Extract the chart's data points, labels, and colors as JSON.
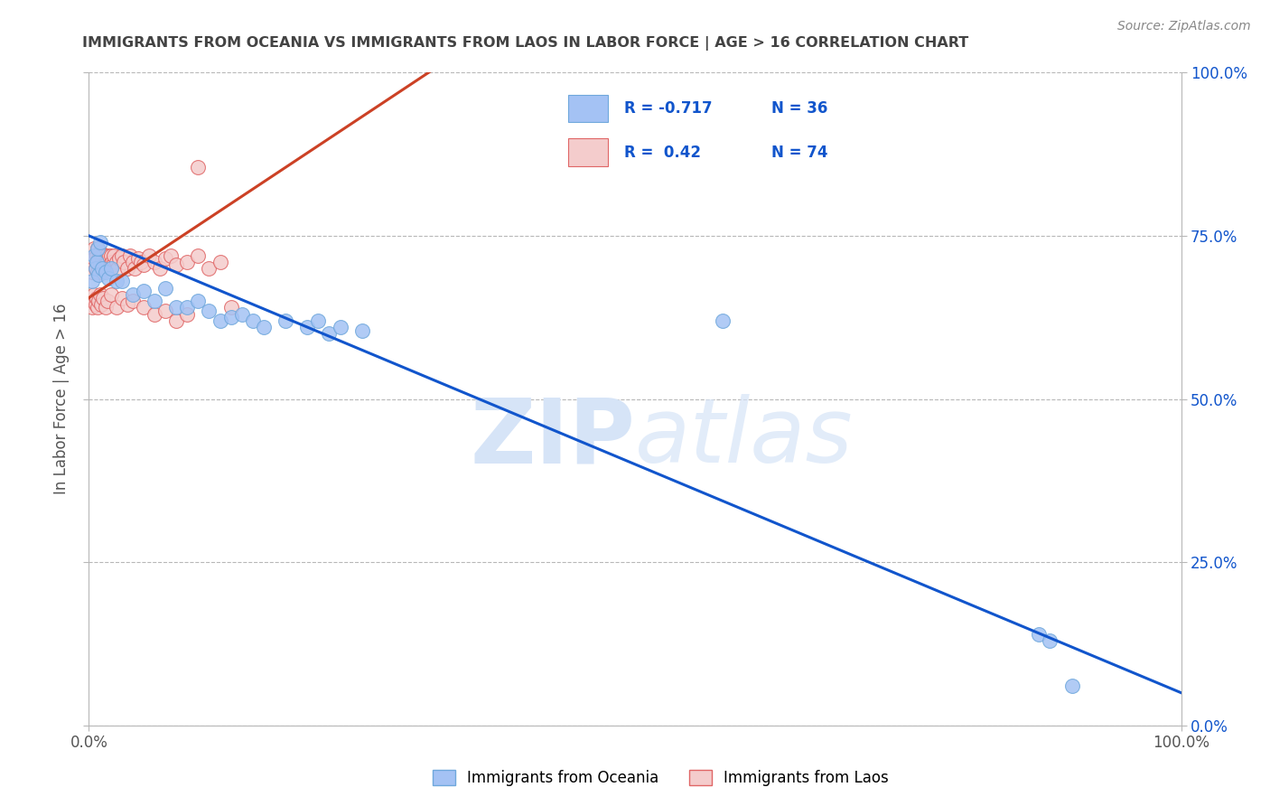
{
  "title": "IMMIGRANTS FROM OCEANIA VS IMMIGRANTS FROM LAOS IN LABOR FORCE | AGE > 16 CORRELATION CHART",
  "source": "Source: ZipAtlas.com",
  "ylabel": "In Labor Force | Age > 16",
  "legend_label_blue": "Immigrants from Oceania",
  "legend_label_pink": "Immigrants from Laos",
  "R_blue": -0.717,
  "N_blue": 36,
  "R_pink": 0.42,
  "N_pink": 74,
  "blue_color": "#a4c2f4",
  "pink_color": "#f4cccc",
  "blue_edge_color": "#6fa8dc",
  "pink_edge_color": "#e06666",
  "blue_line_color": "#1155cc",
  "pink_line_color": "#cc4125",
  "watermark_color": "#d6e4f7",
  "title_color": "#434343",
  "right_tick_color": "#1155cc",
  "grid_color": "#b7b7b7",
  "bg_color": "#ffffff",
  "blue_scatter_x": [
    0.003,
    0.005,
    0.006,
    0.007,
    0.008,
    0.009,
    0.01,
    0.012,
    0.015,
    0.018,
    0.02,
    0.025,
    0.03,
    0.04,
    0.05,
    0.06,
    0.07,
    0.08,
    0.09,
    0.1,
    0.11,
    0.12,
    0.13,
    0.14,
    0.15,
    0.16,
    0.18,
    0.2,
    0.21,
    0.22,
    0.23,
    0.25,
    0.58,
    0.87,
    0.88,
    0.9
  ],
  "blue_scatter_y": [
    0.68,
    0.72,
    0.7,
    0.71,
    0.73,
    0.69,
    0.74,
    0.7,
    0.695,
    0.685,
    0.7,
    0.68,
    0.68,
    0.66,
    0.665,
    0.65,
    0.67,
    0.64,
    0.64,
    0.65,
    0.635,
    0.62,
    0.625,
    0.63,
    0.62,
    0.61,
    0.62,
    0.61,
    0.62,
    0.6,
    0.61,
    0.605,
    0.62,
    0.14,
    0.13,
    0.06
  ],
  "pink_scatter_x": [
    0.002,
    0.003,
    0.004,
    0.004,
    0.005,
    0.005,
    0.006,
    0.007,
    0.007,
    0.008,
    0.008,
    0.009,
    0.01,
    0.01,
    0.011,
    0.012,
    0.013,
    0.014,
    0.015,
    0.015,
    0.016,
    0.017,
    0.018,
    0.019,
    0.02,
    0.021,
    0.022,
    0.023,
    0.025,
    0.026,
    0.028,
    0.03,
    0.032,
    0.035,
    0.038,
    0.04,
    0.042,
    0.045,
    0.048,
    0.05,
    0.055,
    0.06,
    0.065,
    0.07,
    0.075,
    0.08,
    0.09,
    0.1,
    0.11,
    0.12,
    0.003,
    0.004,
    0.005,
    0.006,
    0.007,
    0.008,
    0.009,
    0.01,
    0.011,
    0.013,
    0.015,
    0.017,
    0.02,
    0.025,
    0.03,
    0.035,
    0.04,
    0.05,
    0.06,
    0.07,
    0.08,
    0.09,
    0.1,
    0.13
  ],
  "pink_scatter_y": [
    0.7,
    0.695,
    0.72,
    0.71,
    0.73,
    0.715,
    0.7,
    0.72,
    0.71,
    0.73,
    0.695,
    0.715,
    0.725,
    0.705,
    0.72,
    0.695,
    0.72,
    0.705,
    0.7,
    0.715,
    0.72,
    0.71,
    0.7,
    0.72,
    0.72,
    0.71,
    0.705,
    0.72,
    0.71,
    0.7,
    0.715,
    0.72,
    0.71,
    0.7,
    0.72,
    0.71,
    0.7,
    0.715,
    0.71,
    0.705,
    0.72,
    0.71,
    0.7,
    0.715,
    0.72,
    0.705,
    0.71,
    0.72,
    0.7,
    0.71,
    0.64,
    0.65,
    0.66,
    0.645,
    0.655,
    0.64,
    0.65,
    0.66,
    0.645,
    0.655,
    0.64,
    0.65,
    0.66,
    0.64,
    0.655,
    0.645,
    0.65,
    0.64,
    0.63,
    0.635,
    0.62,
    0.63,
    0.855,
    0.64
  ],
  "blue_line_x": [
    0.0,
    1.0
  ],
  "blue_line_y": [
    0.75,
    0.05
  ],
  "pink_line_x": [
    0.0,
    0.32
  ],
  "pink_line_y": [
    0.655,
    1.01
  ],
  "ylim": [
    0.0,
    1.0
  ],
  "xlim": [
    0.0,
    1.0
  ],
  "yticks_left": [],
  "yticks_right": [
    0.0,
    0.25,
    0.5,
    0.75,
    1.0
  ],
  "ytick_labels_right": [
    "0.0%",
    "25.0%",
    "50.0%",
    "75.0%",
    "100.0%"
  ],
  "xticks": [
    0.0,
    1.0
  ],
  "xtick_labels": [
    "0.0%",
    "100.0%"
  ]
}
